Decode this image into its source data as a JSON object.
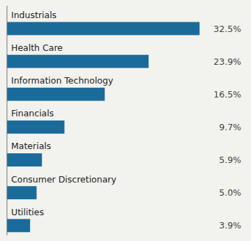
{
  "chart_data": {
    "type": "bar",
    "orientation": "horizontal",
    "categories": [
      "Industrials",
      "Health Care",
      "Information Technology",
      "Financials",
      "Materials",
      "Consumer Discretionary",
      "Utilities"
    ],
    "values": [
      32.5,
      23.9,
      16.5,
      9.7,
      5.9,
      5.0,
      3.9
    ],
    "value_labels": [
      "32.5%",
      "23.9%",
      "16.5%",
      "9.7%",
      "5.9%",
      "5.0%",
      "3.9%"
    ],
    "color": "#1a6b9a",
    "xlim": [
      0,
      40
    ],
    "data_labels": true,
    "tick_labels": false
  }
}
